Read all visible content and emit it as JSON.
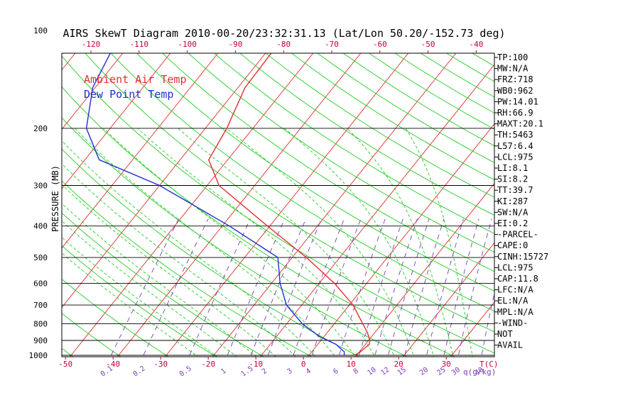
{
  "chart_data": {
    "type": "line",
    "title": "AIRS SkewT Diagram 2010-00-20/23:32:31.13 (Lat/Lon 50.20/-152.73 deg)",
    "ylabel": "PRESSURE (MB)",
    "y_scale": "log",
    "ylim": [
      1050,
      100
    ],
    "pressure_ticks": [
      100,
      200,
      300,
      400,
      500,
      600,
      700,
      800,
      900,
      1000
    ],
    "isobar_lines": [
      100,
      200,
      300,
      400,
      500,
      600,
      700,
      800,
      900,
      1000
    ],
    "bottom_temp_ticks": [
      "-50",
      "-40",
      "-30",
      "-20",
      "-10",
      "0",
      "10",
      "20",
      "30"
    ],
    "bottom_temp_unit": "T(C)",
    "top_temp_ticks": [
      "-120",
      "-110",
      "-100",
      "-90",
      "-80",
      "-70",
      "-60",
      "-50",
      "-40"
    ],
    "mixing_ratio_ticks": [
      "0.1",
      "0.2",
      "0.5",
      "1",
      "1.5",
      "2",
      "3",
      "4",
      "6",
      "8",
      "10",
      "12",
      "15",
      "20",
      "25",
      "30",
      "40"
    ],
    "mixing_ratio_unit": "q(g/kg)",
    "legend": [
      {
        "name": "Ambient Air Temp",
        "color": "#e03030"
      },
      {
        "name": "Dew Point Temp",
        "color": "#2030d0"
      }
    ],
    "legend_position": "top-left",
    "series": [
      {
        "name": "Ambient Air Temp",
        "color": "#e03030",
        "points": [
          {
            "p": 1000,
            "t": 9.6
          },
          {
            "p": 975,
            "t": 10.2
          },
          {
            "p": 925,
            "t": 10.8
          },
          {
            "p": 900,
            "t": 10.3
          },
          {
            "p": 850,
            "t": 8.4
          },
          {
            "p": 800,
            "t": 6.0
          },
          {
            "p": 700,
            "t": 0.8
          },
          {
            "p": 600,
            "t": -6.8
          },
          {
            "p": 500,
            "t": -17.0
          },
          {
            "p": 400,
            "t": -30.5
          },
          {
            "p": 300,
            "t": -47.5
          },
          {
            "p": 250,
            "t": -54.0
          },
          {
            "p": 200,
            "t": -55.5
          },
          {
            "p": 150,
            "t": -58.5
          },
          {
            "p": 100,
            "t": -59.0
          }
        ]
      },
      {
        "name": "Dew Point Temp",
        "color": "#2030d0",
        "points": [
          {
            "p": 1000,
            "t": 7.4
          },
          {
            "p": 975,
            "t": 6.8
          },
          {
            "p": 925,
            "t": 3.8
          },
          {
            "p": 875,
            "t": -1.0
          },
          {
            "p": 800,
            "t": -6.7
          },
          {
            "p": 700,
            "t": -13.2
          },
          {
            "p": 600,
            "t": -18.2
          },
          {
            "p": 500,
            "t": -23.0
          },
          {
            "p": 400,
            "t": -38.5
          },
          {
            "p": 300,
            "t": -60.0
          },
          {
            "p": 250,
            "t": -77.0
          },
          {
            "p": 200,
            "t": -85.0
          },
          {
            "p": 150,
            "t": -90.5
          },
          {
            "p": 100,
            "t": -94.0
          }
        ]
      }
    ],
    "stats": [
      "TP:100",
      "MW:N/A",
      "FRZ:718",
      "WB0:962",
      "PW:14.01",
      "RH:66.9",
      "MAXT:20.1",
      "TH:5463",
      "L57:6.4",
      "LCL:975",
      "LI:8.1",
      "SI:8.2",
      "TT:39.7",
      "KI:287",
      "SW:N/A",
      "EI:0.2",
      "-PARCEL-",
      "CAPE:0",
      "CINH:15727",
      "LCL:975",
      "CAP:11.8",
      "LFC:N/A",
      "EL:N/A",
      "MPL:N/A",
      "-WIND-",
      "NOT",
      "AVAIL"
    ],
    "colors": {
      "isotherm": "#e03030",
      "dry_adiabat": "#22cc22",
      "moist_adiabat": "#22cc22",
      "mixing_ratio": "#7b3fb8",
      "isobar": "#000000",
      "axis_text": "#c0003a"
    }
  }
}
